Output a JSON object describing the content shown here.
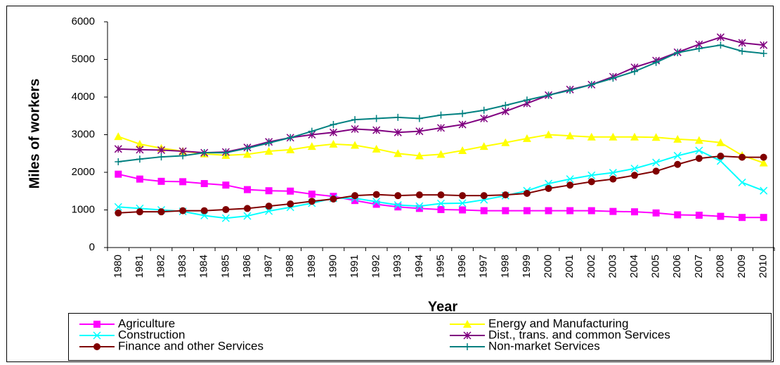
{
  "chart_data": {
    "type": "line",
    "x_label": "Year",
    "y_label": "Miles of workers",
    "categories": [
      "1980",
      "1981",
      "1982",
      "1983",
      "1984",
      "1985",
      "1986",
      "1987",
      "1988",
      "1989",
      "1990",
      "1991",
      "1992",
      "1993",
      "1994",
      "1995",
      "1996",
      "1997",
      "1998",
      "1999",
      "2000",
      "2001",
      "2002",
      "2003",
      "2004",
      "2005",
      "2006",
      "2007",
      "2008",
      "2009",
      "2010"
    ],
    "ylim": [
      0,
      6000
    ],
    "yticks": [
      0,
      1000,
      2000,
      3000,
      4000,
      5000,
      6000
    ],
    "grid": false,
    "legend_position": "bottom",
    "series": [
      {
        "name": "Agriculture",
        "color": "#ff00ff",
        "marker": "square",
        "values": [
          1950,
          1820,
          1760,
          1750,
          1700,
          1660,
          1540,
          1510,
          1500,
          1420,
          1360,
          1250,
          1150,
          1080,
          1040,
          1010,
          1000,
          980,
          980,
          980,
          980,
          980,
          980,
          960,
          950,
          920,
          870,
          860,
          830,
          800,
          800
        ]
      },
      {
        "name": "Energy and Manufacturing",
        "color": "#ffff00",
        "marker": "triangle",
        "values": [
          2950,
          2750,
          2640,
          2560,
          2490,
          2450,
          2480,
          2560,
          2600,
          2690,
          2750,
          2720,
          2620,
          2500,
          2440,
          2480,
          2580,
          2690,
          2790,
          2900,
          3000,
          2970,
          2940,
          2940,
          2940,
          2930,
          2880,
          2850,
          2790,
          2450,
          2250
        ]
      },
      {
        "name": "Construction",
        "color": "#00ffff",
        "marker": "x",
        "values": [
          1080,
          1040,
          1000,
          960,
          850,
          780,
          840,
          970,
          1070,
          1180,
          1310,
          1310,
          1220,
          1130,
          1100,
          1170,
          1180,
          1270,
          1380,
          1510,
          1700,
          1820,
          1920,
          1990,
          2100,
          2260,
          2440,
          2580,
          2300,
          1730,
          1510
        ]
      },
      {
        "name": "Dist., trans. and common Services",
        "color": "#800080",
        "marker": "asterisk",
        "values": [
          2620,
          2600,
          2590,
          2560,
          2520,
          2540,
          2660,
          2810,
          2920,
          3000,
          3060,
          3150,
          3120,
          3060,
          3090,
          3180,
          3270,
          3430,
          3620,
          3830,
          4050,
          4200,
          4330,
          4540,
          4790,
          4970,
          5190,
          5400,
          5590,
          5440,
          5380
        ]
      },
      {
        "name": "Finance and other Services",
        "color": "#800000",
        "marker": "circle",
        "values": [
          920,
          950,
          950,
          980,
          980,
          1010,
          1040,
          1100,
          1160,
          1230,
          1290,
          1380,
          1410,
          1380,
          1400,
          1400,
          1380,
          1380,
          1400,
          1440,
          1570,
          1660,
          1750,
          1820,
          1920,
          2030,
          2210,
          2370,
          2430,
          2400,
          2400
        ]
      },
      {
        "name": "Non-market Services",
        "color": "#008080",
        "marker": "plus",
        "values": [
          2280,
          2350,
          2410,
          2440,
          2520,
          2520,
          2640,
          2780,
          2920,
          3090,
          3270,
          3400,
          3430,
          3460,
          3430,
          3520,
          3560,
          3650,
          3780,
          3920,
          4050,
          4180,
          4330,
          4500,
          4680,
          4920,
          5180,
          5290,
          5380,
          5220,
          5160
        ]
      }
    ]
  }
}
